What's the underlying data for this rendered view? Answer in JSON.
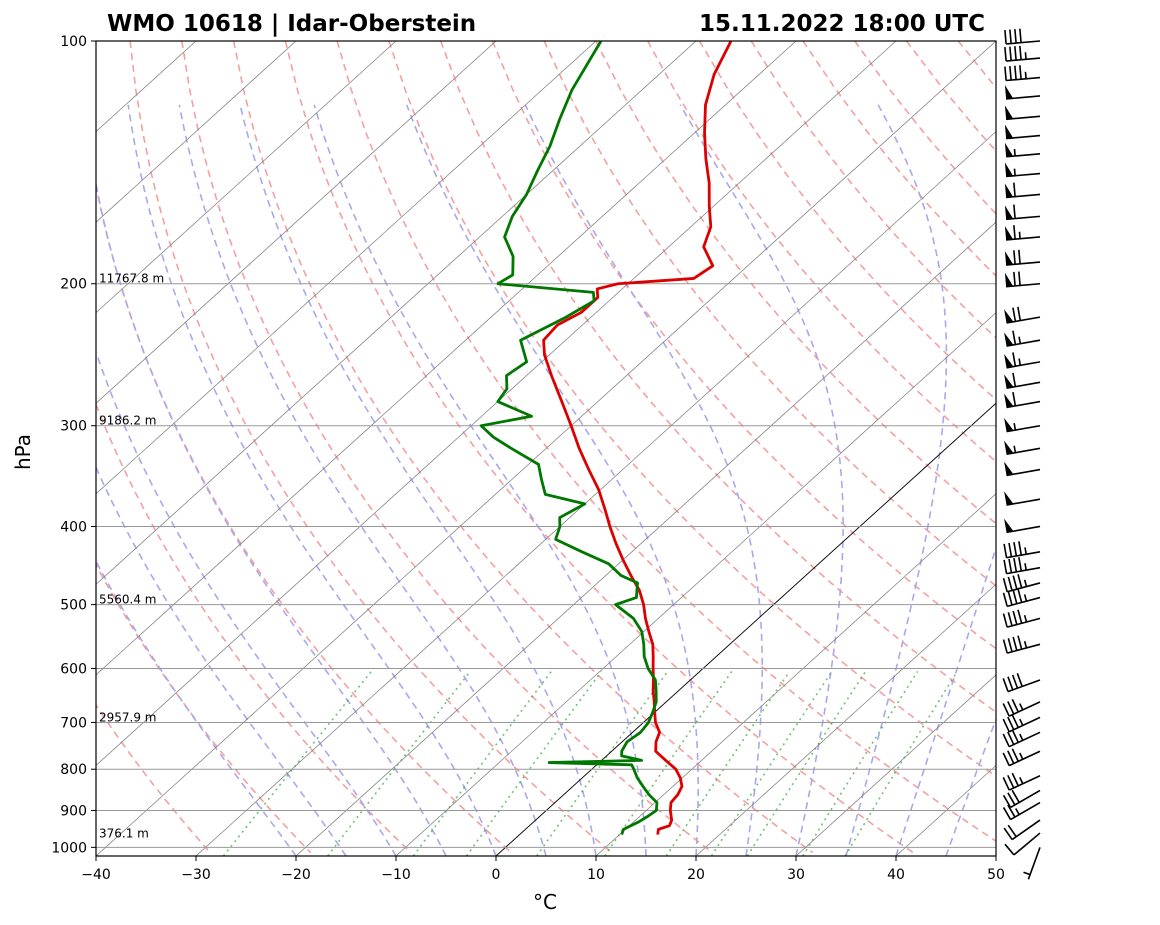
{
  "header": {
    "station": "WMO 10618 | Idar-Oberstein",
    "datetime": "15.11.2022 18:00 UTC"
  },
  "chart_data": {
    "type": "skew-t log-p",
    "xlabel": "°C",
    "ylabel": "hPa",
    "xlim": [
      -40,
      50
    ],
    "ylim": [
      1025,
      100
    ],
    "x_ticks": [
      -40,
      -30,
      -20,
      -10,
      0,
      10,
      20,
      30,
      40,
      50
    ],
    "x_tick_labels": [
      "−40",
      "−30",
      "−20",
      "−10",
      "0",
      "10",
      "20",
      "30",
      "40",
      "50"
    ],
    "y_ticks": [
      1000,
      900,
      800,
      700,
      600,
      500,
      400,
      300,
      200,
      100
    ],
    "y_tick_labels": [
      "1000",
      "900",
      "800",
      "700",
      "600",
      "500",
      "400",
      "300",
      "200",
      "100"
    ],
    "height_labels": [
      {
        "p": 975,
        "text": "376.1 m"
      },
      {
        "p": 700,
        "text": "2957.9 m"
      },
      {
        "p": 500,
        "text": "5560.4 m"
      },
      {
        "p": 300,
        "text": "9186.2 m"
      },
      {
        "p": 200,
        "text": "11767.8 m"
      }
    ],
    "colors": {
      "temperature": "#dd0000",
      "dewpoint": "#007700",
      "dry_adiabat": "#f4a0a0",
      "moist_adiabat": "#a8a8ee",
      "mixing_ratio": "#33aa33",
      "isotherm": "#777777",
      "isobar": "#999999"
    },
    "series": [
      {
        "name": "",
        "role": "temperature",
        "points": [
          [
            964,
            13.8
          ],
          [
            950,
            13.3
          ],
          [
            940,
            14.0
          ],
          [
            925,
            13.6
          ],
          [
            900,
            12.4
          ],
          [
            880,
            11.6
          ],
          [
            860,
            11.4
          ],
          [
            840,
            10.9
          ],
          [
            820,
            9.8
          ],
          [
            800,
            8.4
          ],
          [
            780,
            6.4
          ],
          [
            760,
            4.4
          ],
          [
            740,
            3.4
          ],
          [
            720,
            2.7
          ],
          [
            700,
            1.2
          ],
          [
            680,
            0.0
          ],
          [
            660,
            -1.2
          ],
          [
            640,
            -2.5
          ],
          [
            620,
            -3.7
          ],
          [
            600,
            -5.0
          ],
          [
            580,
            -6.3
          ],
          [
            560,
            -7.7
          ],
          [
            540,
            -9.5
          ],
          [
            520,
            -11.3
          ],
          [
            500,
            -13.0
          ],
          [
            480,
            -15.0
          ],
          [
            460,
            -17.5
          ],
          [
            440,
            -20.0
          ],
          [
            420,
            -22.5
          ],
          [
            400,
            -25.0
          ],
          [
            380,
            -27.5
          ],
          [
            360,
            -30.2
          ],
          [
            340,
            -33.4
          ],
          [
            320,
            -36.7
          ],
          [
            300,
            -40.0
          ],
          [
            280,
            -43.6
          ],
          [
            260,
            -47.5
          ],
          [
            245,
            -50.5
          ],
          [
            235,
            -52.2
          ],
          [
            225,
            -52.5
          ],
          [
            217,
            -51.5
          ],
          [
            208,
            -51.5
          ],
          [
            203,
            -52.5
          ],
          [
            200,
            -51.0
          ],
          [
            197,
            -44.0
          ],
          [
            190,
            -43.5
          ],
          [
            180,
            -46.5
          ],
          [
            170,
            -48.0
          ],
          [
            160,
            -50.5
          ],
          [
            150,
            -53.0
          ],
          [
            140,
            -56.0
          ],
          [
            130,
            -59.0
          ],
          [
            120,
            -62.0
          ],
          [
            110,
            -64.5
          ],
          [
            100,
            -66.5
          ]
        ]
      },
      {
        "name": "",
        "role": "dewpoint",
        "points": [
          [
            964,
            10.2
          ],
          [
            950,
            9.8
          ],
          [
            930,
            10.5
          ],
          [
            915,
            10.8
          ],
          [
            900,
            11.0
          ],
          [
            880,
            10.2
          ],
          [
            860,
            8.5
          ],
          [
            840,
            7.0
          ],
          [
            820,
            5.5
          ],
          [
            800,
            4.2
          ],
          [
            790,
            3.5
          ],
          [
            785,
            -5.0
          ],
          [
            780,
            4.0
          ],
          [
            770,
            1.5
          ],
          [
            760,
            1.0
          ],
          [
            740,
            0.5
          ],
          [
            720,
            0.8
          ],
          [
            700,
            0.5
          ],
          [
            680,
            -0.2
          ],
          [
            660,
            -1.0
          ],
          [
            640,
            -2.2
          ],
          [
            620,
            -3.5
          ],
          [
            600,
            -5.5
          ],
          [
            580,
            -7.2
          ],
          [
            560,
            -8.6
          ],
          [
            540,
            -10.2
          ],
          [
            520,
            -12.5
          ],
          [
            500,
            -15.8
          ],
          [
            490,
            -14.5
          ],
          [
            470,
            -16.0
          ],
          [
            460,
            -18.5
          ],
          [
            445,
            -21.0
          ],
          [
            430,
            -25.0
          ],
          [
            415,
            -29.0
          ],
          [
            400,
            -30.0
          ],
          [
            390,
            -31.0
          ],
          [
            375,
            -30.0
          ],
          [
            365,
            -35.0
          ],
          [
            350,
            -37.0
          ],
          [
            335,
            -39.0
          ],
          [
            320,
            -43.5
          ],
          [
            310,
            -46.5
          ],
          [
            300,
            -49.0
          ],
          [
            292,
            -45.0
          ],
          [
            280,
            -50.0
          ],
          [
            270,
            -50.5
          ],
          [
            260,
            -52.0
          ],
          [
            250,
            -51.5
          ],
          [
            235,
            -54.5
          ],
          [
            220,
            -52.5
          ],
          [
            210,
            -51.5
          ],
          [
            205,
            -52.5
          ],
          [
            200,
            -63.0
          ],
          [
            195,
            -62.5
          ],
          [
            185,
            -64.5
          ],
          [
            175,
            -67.5
          ],
          [
            165,
            -69.0
          ],
          [
            155,
            -70.0
          ],
          [
            145,
            -71.5
          ],
          [
            135,
            -73.0
          ],
          [
            125,
            -75.0
          ],
          [
            115,
            -77.0
          ],
          [
            100,
            -79.5
          ]
        ]
      }
    ],
    "wind_barbs_kt": [
      {
        "p": 1000,
        "speed": 5,
        "dir": 200
      },
      {
        "p": 960,
        "speed": 10,
        "dir": 230
      },
      {
        "p": 925,
        "speed": 20,
        "dir": 235
      },
      {
        "p": 880,
        "speed": 25,
        "dir": 240
      },
      {
        "p": 850,
        "speed": 30,
        "dir": 240
      },
      {
        "p": 815,
        "speed": 35,
        "dir": 245
      },
      {
        "p": 760,
        "speed": 35,
        "dir": 245
      },
      {
        "p": 720,
        "speed": 35,
        "dir": 245
      },
      {
        "p": 690,
        "speed": 35,
        "dir": 245
      },
      {
        "p": 660,
        "speed": 35,
        "dir": 245
      },
      {
        "p": 620,
        "speed": 40,
        "dir": 250
      },
      {
        "p": 560,
        "speed": 45,
        "dir": 255
      },
      {
        "p": 520,
        "speed": 45,
        "dir": 255
      },
      {
        "p": 490,
        "speed": 45,
        "dir": 255
      },
      {
        "p": 470,
        "speed": 45,
        "dir": 255
      },
      {
        "p": 450,
        "speed": 45,
        "dir": 260
      },
      {
        "p": 430,
        "speed": 45,
        "dir": 260
      },
      {
        "p": 400,
        "speed": 50,
        "dir": 260
      },
      {
        "p": 370,
        "speed": 50,
        "dir": 260
      },
      {
        "p": 340,
        "speed": 50,
        "dir": 260
      },
      {
        "p": 320,
        "speed": 55,
        "dir": 260
      },
      {
        "p": 300,
        "speed": 55,
        "dir": 260
      },
      {
        "p": 280,
        "speed": 60,
        "dir": 260
      },
      {
        "p": 265,
        "speed": 60,
        "dir": 260
      },
      {
        "p": 250,
        "speed": 65,
        "dir": 260
      },
      {
        "p": 235,
        "speed": 65,
        "dir": 260
      },
      {
        "p": 220,
        "speed": 70,
        "dir": 260
      },
      {
        "p": 200,
        "speed": 70,
        "dir": 265
      },
      {
        "p": 188,
        "speed": 70,
        "dir": 265
      },
      {
        "p": 175,
        "speed": 65,
        "dir": 265
      },
      {
        "p": 165,
        "speed": 60,
        "dir": 265
      },
      {
        "p": 155,
        "speed": 60,
        "dir": 265
      },
      {
        "p": 146,
        "speed": 55,
        "dir": 265
      },
      {
        "p": 138,
        "speed": 55,
        "dir": 265
      },
      {
        "p": 131,
        "speed": 50,
        "dir": 265
      },
      {
        "p": 124,
        "speed": 50,
        "dir": 265
      },
      {
        "p": 117,
        "speed": 50,
        "dir": 265
      },
      {
        "p": 111,
        "speed": 45,
        "dir": 265
      },
      {
        "p": 105,
        "speed": 45,
        "dir": 265
      },
      {
        "p": 100,
        "speed": 40,
        "dir": 265
      }
    ],
    "grid": true
  }
}
